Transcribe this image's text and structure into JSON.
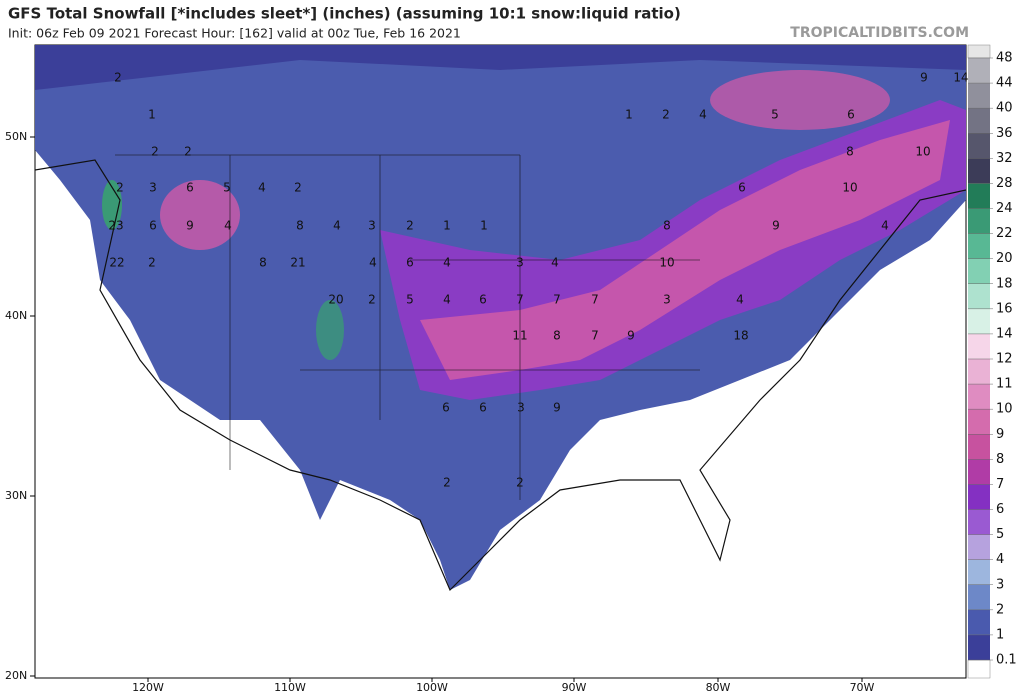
{
  "header": {
    "title": "GFS Total Snowfall [*includes sleet*] (inches) (assuming 10:1 snow:liquid ratio)",
    "subtitle": "Init: 06z Feb 09 2021   Forecast Hour: [162]   valid at 00z Tue, Feb 16 2021",
    "watermark": "TROPICALTIDBITS.COM"
  },
  "map": {
    "lat_labels": [
      "50N",
      "40N",
      "30N",
      "20N"
    ],
    "lon_labels": [
      "120W",
      "110W",
      "100W",
      "90W",
      "80W",
      "70W"
    ],
    "amount_labels": [
      "2",
      "1",
      "2",
      "2",
      "2",
      "3",
      "6",
      "5",
      "4",
      "2",
      "23",
      "6",
      "9",
      "4",
      "8",
      "4",
      "3",
      "2",
      "1",
      "1",
      "22",
      "2",
      "8",
      "21",
      "4",
      "6",
      "4",
      "3",
      "4",
      "10",
      "20",
      "2",
      "5",
      "4",
      "6",
      "7",
      "7",
      "7",
      "3",
      "4",
      "11",
      "8",
      "7",
      "9",
      "18",
      "2",
      "2",
      "6",
      "6",
      "3",
      "9",
      "1",
      "2",
      "4",
      "5",
      "6",
      "9",
      "14",
      "8",
      "10",
      "6",
      "10",
      "8",
      "9",
      "4"
    ]
  },
  "colorbar": {
    "ticks": [
      0.1,
      1,
      2,
      3,
      4,
      5,
      6,
      7,
      8,
      9,
      10,
      11,
      12,
      14,
      16,
      18,
      20,
      22,
      24,
      28,
      32,
      36,
      40,
      44,
      48
    ],
    "colors": [
      "#3b3f99",
      "#4a5aae",
      "#6d88c8",
      "#9db6de",
      "#b6a2de",
      "#9a5ad2",
      "#8430c2",
      "#b03ca6",
      "#c7529f",
      "#d46cad",
      "#df8cc1",
      "#eab2d5",
      "#f6d6e9",
      "#d8f1e6",
      "#aee2cf",
      "#82d0b3",
      "#58b894",
      "#3a9a75",
      "#227c58",
      "#3c3c58",
      "#56566c",
      "#737384",
      "#90909c",
      "#b0b0b8"
    ]
  }
}
